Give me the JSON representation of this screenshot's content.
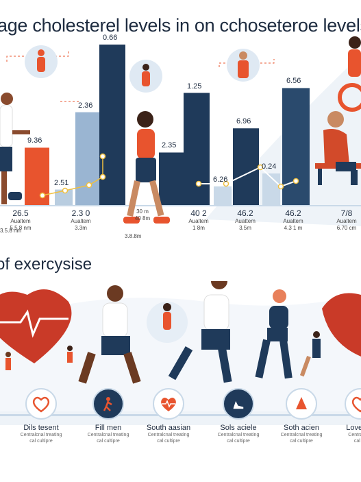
{
  "header": {
    "title": "age cholesterel levels in on cchoseteroe levels"
  },
  "bars": [
    {
      "label": "9.36",
      "value": 0.36,
      "color": "#e8542e"
    },
    {
      "label": "2.51",
      "value": 0.1,
      "color": "#b9cde0"
    },
    {
      "label": "2.36",
      "value": 0.58,
      "color": "#9ab5d2"
    },
    {
      "label": "0.66",
      "value": 1.0,
      "color": "#1f3a5a"
    },
    {
      "label": "2.35",
      "value": 0.33,
      "color": "#1f3a5a"
    },
    {
      "label": "1.25",
      "value": 0.7,
      "color": "#1f3a5a"
    },
    {
      "label": "6.26",
      "value": 0.12,
      "color": "#c9d9e8"
    },
    {
      "label": "6.96",
      "value": 0.48,
      "color": "#1f3a5a"
    },
    {
      "label": "0.24",
      "value": 0.2,
      "color": "#c9d9e8"
    },
    {
      "label": "6.56",
      "value": 0.73,
      "color": "#2a4a6d"
    }
  ],
  "axis": [
    {
      "num": "26.5",
      "line1": "Aualtem",
      "line2": "5.5.8 nm"
    },
    {
      "num": "2.3 0",
      "line1": "Aualtem",
      "line2": "3.3m"
    },
    {
      "num": "",
      "line1": "30 m",
      "line2": "40 8m"
    },
    {
      "num": "40 2",
      "line1": "Aualtem",
      "line2": "1 8m"
    },
    {
      "num": "46.2",
      "line1": "Auattem",
      "line2": "3.5m"
    },
    {
      "num": "46.2",
      "line1": "Aualtem",
      "line2": "4.3 1 m"
    },
    {
      "num": "7/8",
      "line1": "Aualtem",
      "line2": "6.70 cm"
    }
  ],
  "axis_extra": {
    "a": "3.8.8m",
    "b": "3.5.8 nm"
  },
  "section": {
    "subtitle": "of exercysise"
  },
  "exercises": [
    {
      "label": "Dils tesent",
      "sub1": "Centralcnal treating",
      "sub2": "cal cultipre",
      "icon": "heart-icon"
    },
    {
      "label": "Fill men",
      "sub1": "Centralcnal treating",
      "sub2": "cal cultipre",
      "icon": "runner-icon"
    },
    {
      "label": "South aasian",
      "sub1": "Centralcnal treating",
      "sub2": "cal cultipre",
      "icon": "heartbeat-icon"
    },
    {
      "label": "Sols aciele",
      "sub1": "Centralcnal treating",
      "sub2": "cal cultipre",
      "icon": "shoe-icon"
    },
    {
      "label": "Soth acien",
      "sub1": "Centralcnal treating",
      "sub2": "cal cultipre",
      "icon": "drop-icon"
    },
    {
      "label": "Loveelm",
      "sub1": "Centralcnal",
      "sub2": "cal cu",
      "icon": "heart-icon"
    }
  ],
  "colors": {
    "accent": "#e8542e",
    "navy": "#1f3a5a",
    "light": "#b9cde0"
  }
}
